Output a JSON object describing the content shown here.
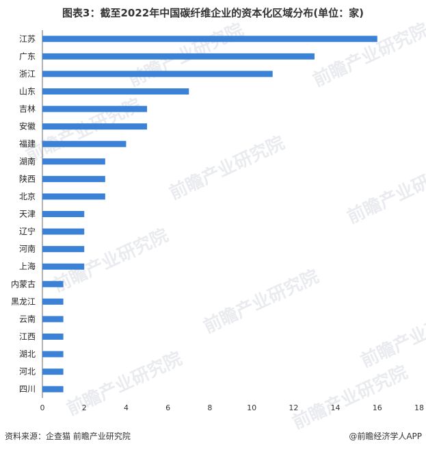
{
  "title": "图表3：截至2022年中国碳纤维企业的资本化区域分布(单位：家)",
  "footer": {
    "source": "资料来源：企查猫 前瞻产业研究院",
    "brand": "@前瞻经济学人APP"
  },
  "watermark": "前瞻产业研究院",
  "colors": {
    "bar": "#3b82d6",
    "axis": "#666666"
  },
  "chart_data": {
    "type": "bar",
    "orientation": "horizontal",
    "title": "图表3：截至2022年中国碳纤维企业的资本化区域分布(单位：家)",
    "categories": [
      "江苏",
      "广东",
      "浙江",
      "山东",
      "吉林",
      "安徽",
      "福建",
      "湖南",
      "陕西",
      "北京",
      "天津",
      "辽宁",
      "河南",
      "上海",
      "内蒙古",
      "黑龙江",
      "云南",
      "江西",
      "湖北",
      "河北",
      "四川"
    ],
    "values": [
      16,
      13,
      11,
      7,
      5,
      5,
      4,
      3,
      3,
      3,
      2,
      2,
      2,
      2,
      1,
      1,
      1,
      1,
      1,
      1,
      1
    ],
    "xlim": [
      0,
      18
    ],
    "xticks": [
      0,
      2,
      4,
      6,
      8,
      10,
      12,
      14,
      16,
      18
    ],
    "grid": false
  }
}
